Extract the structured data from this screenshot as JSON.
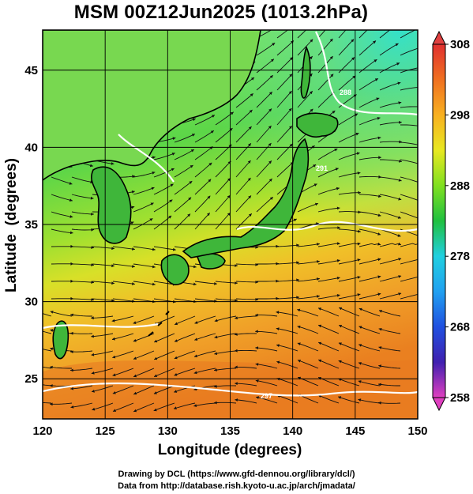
{
  "title": "MSM 00Z12Jun2025 (1013.2hPa)",
  "axes": {
    "xlabel": "Longitude (degrees)",
    "ylabel": "Latitude  (degrees)",
    "xticks": [
      "120",
      "125",
      "130",
      "135",
      "140",
      "145",
      "150"
    ],
    "yticks": [
      "25",
      "30",
      "35",
      "40",
      "45"
    ]
  },
  "colorbar": {
    "labels": [
      "308",
      "298",
      "288",
      "278",
      "268",
      "258"
    ],
    "range": [
      258,
      308
    ],
    "colors": [
      "#e040c0",
      "#2020c0",
      "#2060ff",
      "#20d0e0",
      "#20c040",
      "#80e020",
      "#e8e820",
      "#f8b020",
      "#f07020",
      "#e03030"
    ]
  },
  "credits": {
    "line1": "Drawing by DCL (https://www.gfd-dennou.org/library/dcl/)",
    "line2": "Data from http://database.rish.kyoto-u.ac.jp/arch/jmadata/"
  },
  "contour_labels": [
    "297",
    "291",
    "288"
  ]
}
